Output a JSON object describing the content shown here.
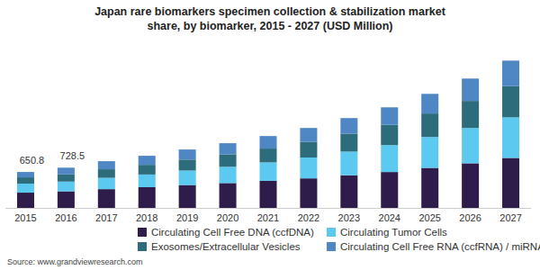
{
  "chart_data": {
    "type": "bar",
    "stacked": true,
    "title": "Japan rare biomarkers specimen collection & stabilization market share, by biomarker, 2015 - 2027 (USD Million)",
    "categories": [
      "2015",
      "2016",
      "2017",
      "2018",
      "2019",
      "2020",
      "2021",
      "2022",
      "2023",
      "2024",
      "2025",
      "2026",
      "2027"
    ],
    "series": [
      {
        "name": "Circulating Cell Free DNA (ccfDNA)",
        "color": "#2e1c4b",
        "values": [
          276.4,
          300.5,
          340,
          375,
          415,
          450,
          490,
          535,
          590,
          650,
          725,
          808,
          905
        ]
      },
      {
        "name": "Circulating Tumor Cells",
        "color": "#5cc9f1",
        "values": [
          162.8,
          176,
          205,
          230,
          262,
          295,
          335,
          378,
          430,
          488,
          560,
          640,
          735
        ]
      },
      {
        "name": "Exosomes/Extracellular Vesicles",
        "color": "#2d6c7a",
        "values": [
          114.0,
          130,
          155,
          175,
          198,
          225,
          250,
          283,
          325,
          368,
          425,
          490,
          565
        ]
      },
      {
        "name": "Circulating Cell Free RNA (ccfRNA) / miRNA",
        "color": "#4f86c4",
        "values": [
          97.6,
          122,
          146,
          164,
          183,
          202,
          227,
          252,
          282,
          316,
          356,
          405,
          463
        ]
      }
    ],
    "ylim": [
      0,
      3000
    ],
    "tick_labels": "x",
    "grid": false,
    "legend": "bottom",
    "annotations": [
      {
        "x": "2015",
        "text": "650.8"
      },
      {
        "x": "2016",
        "text": "728.5"
      }
    ],
    "source": "Source: www.grandviewresearch.com"
  }
}
